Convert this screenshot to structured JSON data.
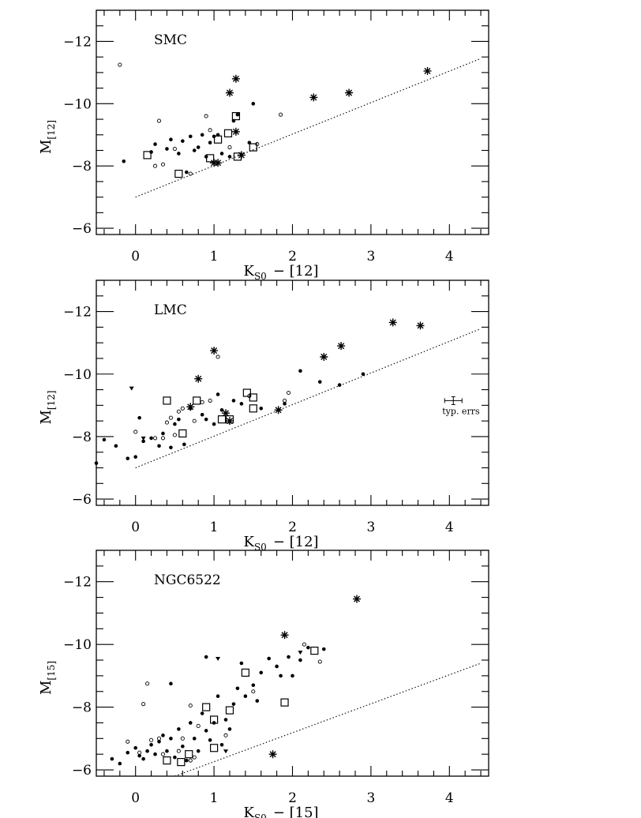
{
  "figure": {
    "background": "#ffffff",
    "ink": "#000000"
  },
  "chart_data": [
    {
      "type": "scatter",
      "title": "SMC",
      "xlabel": "K_S0 − [12]",
      "xlabel_main": "K",
      "xlabel_sub": "S0",
      "xlabel_rest": "− [12]",
      "ylabel_main": "M",
      "ylabel_sub": "[12]",
      "xlim": [
        -0.5,
        4.5
      ],
      "ylim": [
        -5.8,
        -13.0
      ],
      "xticks": [
        0,
        1,
        2,
        3,
        4
      ],
      "xtick_labels": [
        "0",
        "1",
        "2",
        "3",
        "4"
      ],
      "yticks": [
        -12,
        -10,
        -8,
        -6
      ],
      "ytick_labels": [
        "−12",
        "−10",
        "−8",
        "−6"
      ],
      "reference_line": {
        "x": [
          0.0,
          4.4
        ],
        "y": [
          -7.0,
          -11.45
        ],
        "style": "dotted"
      },
      "series": [
        {
          "marker": "asterisk",
          "x": [
            1.05,
            1.28,
            1.2,
            1.28,
            1.0,
            1.35,
            2.27,
            2.72,
            3.72
          ],
          "y": [
            -8.1,
            -10.8,
            -10.35,
            -9.1,
            -8.1,
            -8.35,
            -10.2,
            -10.35,
            -11.05
          ]
        },
        {
          "marker": "open-square",
          "x": [
            0.15,
            0.55,
            0.95,
            1.05,
            1.18,
            1.28,
            1.3,
            1.5
          ],
          "y": [
            -8.35,
            -7.75,
            -8.25,
            -8.85,
            -9.05,
            -9.6,
            -8.3,
            -8.6
          ]
        },
        {
          "marker": "filled-dot",
          "x": [
            -0.15,
            0.2,
            0.25,
            0.4,
            0.45,
            0.55,
            0.6,
            0.65,
            0.7,
            0.75,
            0.8,
            0.85,
            0.9,
            0.95,
            1.0,
            1.05,
            1.1,
            1.2,
            1.25,
            1.3,
            1.45,
            1.5
          ],
          "y": [
            -8.15,
            -8.45,
            -8.7,
            -8.55,
            -8.85,
            -8.4,
            -8.8,
            -7.8,
            -8.95,
            -8.5,
            -8.6,
            -9.0,
            -8.3,
            -8.75,
            -8.95,
            -9.0,
            -8.4,
            -8.3,
            -9.45,
            -9.65,
            -8.75,
            -10.0
          ]
        },
        {
          "marker": "open-dot",
          "x": [
            -0.2,
            0.25,
            0.3,
            0.35,
            0.5,
            0.7,
            0.9,
            0.95,
            1.2,
            1.55,
            1.85
          ],
          "y": [
            -11.25,
            -8.0,
            -9.45,
            -8.05,
            -8.55,
            -7.75,
            -9.6,
            -9.15,
            -8.6,
            -8.7,
            -9.65
          ]
        }
      ]
    },
    {
      "type": "scatter",
      "title": "LMC",
      "xlabel": "K_S0 − [12]",
      "xlabel_main": "K",
      "xlabel_sub": "S0",
      "xlabel_rest": "− [12]",
      "ylabel_main": "M",
      "ylabel_sub": "[12]",
      "xlim": [
        -0.5,
        4.5
      ],
      "ylim": [
        -5.8,
        -13.0
      ],
      "xticks": [
        0,
        1,
        2,
        3,
        4
      ],
      "xtick_labels": [
        "0",
        "1",
        "2",
        "3",
        "4"
      ],
      "yticks": [
        -12,
        -10,
        -8,
        -6
      ],
      "ytick_labels": [
        "−12",
        "−10",
        "−8",
        "−6"
      ],
      "reference_line": {
        "x": [
          0.0,
          4.4
        ],
        "y": [
          -7.0,
          -11.45
        ],
        "style": "dotted"
      },
      "annotation": {
        "text": "typ. errs",
        "x": 4.05,
        "y": -9.15
      },
      "series": [
        {
          "marker": "asterisk",
          "x": [
            0.7,
            0.8,
            1.0,
            1.15,
            1.2,
            1.82,
            2.4,
            2.62,
            3.28,
            3.63
          ],
          "y": [
            -8.95,
            -9.85,
            -10.75,
            -8.75,
            -8.5,
            -8.85,
            -10.55,
            -10.9,
            -11.65,
            -11.55
          ]
        },
        {
          "marker": "open-square",
          "x": [
            0.4,
            0.6,
            0.78,
            1.1,
            1.2,
            1.42,
            1.5,
            1.5
          ],
          "y": [
            -9.15,
            -8.1,
            -9.15,
            -8.55,
            -8.55,
            -9.4,
            -9.25,
            -8.9
          ]
        },
        {
          "marker": "filled-dot",
          "x": [
            -0.5,
            -0.4,
            -0.25,
            -0.1,
            0.0,
            0.05,
            0.1,
            0.2,
            0.3,
            0.35,
            0.45,
            0.5,
            0.55,
            0.62,
            0.7,
            0.85,
            0.9,
            1.0,
            1.05,
            1.1,
            1.25,
            1.35,
            1.6,
            1.9,
            2.1,
            2.35,
            2.6,
            2.9
          ],
          "y": [
            -7.15,
            -7.9,
            -7.7,
            -7.3,
            -7.35,
            -8.6,
            -7.85,
            -7.95,
            -7.7,
            -8.1,
            -7.65,
            -8.4,
            -8.55,
            -7.75,
            -8.9,
            -8.7,
            -8.55,
            -8.4,
            -9.35,
            -8.85,
            -9.15,
            -9.05,
            -8.9,
            -9.05,
            -10.1,
            -9.75,
            -9.65,
            -10.0
          ]
        },
        {
          "marker": "open-dot",
          "x": [
            0.0,
            0.25,
            0.35,
            0.4,
            0.45,
            0.5,
            0.55,
            0.6,
            0.75,
            0.85,
            0.95,
            1.05,
            1.45,
            1.9,
            1.95
          ],
          "y": [
            -8.15,
            -7.95,
            -7.95,
            -8.45,
            -8.6,
            -8.05,
            -8.8,
            -8.9,
            -8.5,
            -9.1,
            -9.15,
            -10.55,
            -9.3,
            -9.15,
            -9.4
          ]
        },
        {
          "marker": "triangle",
          "x": [
            -0.05,
            0.1
          ],
          "y": [
            -9.55,
            -7.95
          ]
        }
      ]
    },
    {
      "type": "scatter",
      "title": "NGC6522",
      "xlabel": "K_S0 − [15]",
      "xlabel_main": "K",
      "xlabel_sub": "S0",
      "xlabel_rest": "− [15]",
      "ylabel_main": "M",
      "ylabel_sub": "[15]",
      "xlim": [
        -0.5,
        4.5
      ],
      "ylim": [
        -5.8,
        -13.0
      ],
      "xticks": [
        0,
        1,
        2,
        3,
        4
      ],
      "xtick_labels": [
        "0",
        "1",
        "2",
        "3",
        "4"
      ],
      "yticks": [
        -12,
        -10,
        -8,
        -6
      ],
      "ytick_labels": [
        "−12",
        "−10",
        "−8",
        "−6"
      ],
      "reference_line": {
        "x": [
          0.5,
          4.4
        ],
        "y": [
          -5.8,
          -9.4
        ],
        "style": "dotted"
      },
      "series": [
        {
          "marker": "asterisk",
          "x": [
            1.75,
            1.9,
            2.82
          ],
          "y": [
            -6.5,
            -10.3,
            -11.45
          ]
        },
        {
          "marker": "open-square",
          "x": [
            0.4,
            0.58,
            0.68,
            0.9,
            1.0,
            1.0,
            1.2,
            1.4,
            1.9,
            2.28
          ],
          "y": [
            -6.3,
            -6.25,
            -6.5,
            -8.0,
            -7.6,
            -6.7,
            -7.9,
            -9.1,
            -8.15,
            -9.8
          ]
        },
        {
          "marker": "filled-dot",
          "x": [
            -0.3,
            -0.2,
            -0.1,
            0.0,
            0.05,
            0.1,
            0.15,
            0.2,
            0.25,
            0.3,
            0.35,
            0.4,
            0.45,
            0.5,
            0.55,
            0.6,
            0.65,
            0.7,
            0.75,
            0.8,
            0.85,
            0.9,
            0.95,
            1.0,
            1.05,
            1.1,
            1.15,
            1.2,
            1.25,
            1.3,
            1.35,
            1.4,
            1.5,
            1.55,
            1.6,
            1.7,
            1.8,
            1.85,
            1.95,
            2.0,
            2.1,
            2.2,
            2.4,
            0.45,
            0.9
          ],
          "y": [
            -6.35,
            -6.2,
            -6.55,
            -6.7,
            -6.45,
            -6.35,
            -6.6,
            -6.8,
            -6.5,
            -6.9,
            -7.1,
            -6.6,
            -7.0,
            -6.4,
            -7.3,
            -6.75,
            -6.3,
            -7.5,
            -7.0,
            -6.6,
            -7.8,
            -7.25,
            -6.95,
            -7.5,
            -8.35,
            -6.8,
            -7.6,
            -7.3,
            -8.1,
            -8.6,
            -9.4,
            -8.35,
            -8.7,
            -8.2,
            -9.1,
            -9.55,
            -9.3,
            -9.0,
            -9.6,
            -9.0,
            -9.5,
            -9.9,
            -9.85,
            -8.75,
            -9.6
          ]
        },
        {
          "marker": "open-dot",
          "x": [
            -0.1,
            0.05,
            0.1,
            0.15,
            0.2,
            0.3,
            0.35,
            0.55,
            0.6,
            0.7,
            0.75,
            0.8,
            1.15,
            1.5,
            2.15,
            2.35,
            0.7
          ],
          "y": [
            -6.9,
            -6.55,
            -8.1,
            -8.75,
            -6.95,
            -7.0,
            -6.5,
            -6.6,
            -7.0,
            -8.05,
            -6.4,
            -7.4,
            -7.1,
            -8.5,
            -10.0,
            -9.45,
            -6.3
          ]
        },
        {
          "marker": "triangle",
          "x": [
            1.05,
            1.15,
            2.1
          ],
          "y": [
            -9.55,
            -6.6,
            -9.75
          ]
        }
      ]
    }
  ]
}
